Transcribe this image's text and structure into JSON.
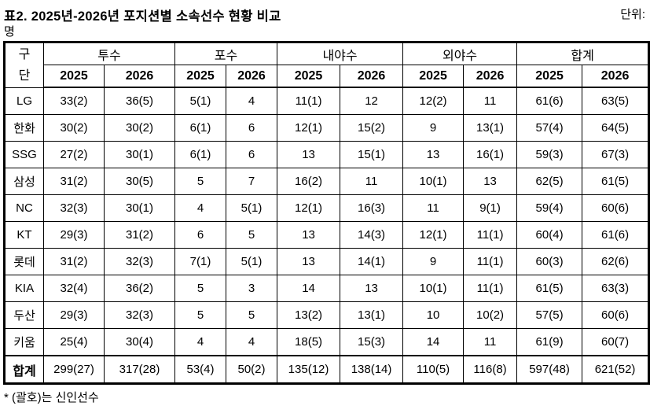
{
  "header": {
    "title": "표2. 2025년-2026년 포지션별 소속선수 현황 비교",
    "unit_label": "단위:",
    "unit_value": "명"
  },
  "table": {
    "team_col_line1": "구",
    "team_col_line2": "단",
    "groups": [
      "투수",
      "포수",
      "내야수",
      "외야수",
      "합계"
    ],
    "year_headers": [
      "2025",
      "2026"
    ],
    "rows": [
      {
        "team": "LG",
        "values": [
          "33(2)",
          "36(5)",
          "5(1)",
          "4",
          "11(1)",
          "12",
          "12(2)",
          "11",
          "61(6)",
          "63(5)"
        ]
      },
      {
        "team": "한화",
        "values": [
          "30(2)",
          "30(2)",
          "6(1)",
          "6",
          "12(1)",
          "15(2)",
          "9",
          "13(1)",
          "57(4)",
          "64(5)"
        ]
      },
      {
        "team": "SSG",
        "values": [
          "27(2)",
          "30(1)",
          "6(1)",
          "6",
          "13",
          "15(1)",
          "13",
          "16(1)",
          "59(3)",
          "67(3)"
        ]
      },
      {
        "team": "삼성",
        "values": [
          "31(2)",
          "30(5)",
          "5",
          "7",
          "16(2)",
          "11",
          "10(1)",
          "13",
          "62(5)",
          "61(5)"
        ]
      },
      {
        "team": "NC",
        "values": [
          "32(3)",
          "30(1)",
          "4",
          "5(1)",
          "12(1)",
          "16(3)",
          "11",
          "9(1)",
          "59(4)",
          "60(6)"
        ]
      },
      {
        "team": "KT",
        "values": [
          "29(3)",
          "31(2)",
          "6",
          "5",
          "13",
          "14(3)",
          "12(1)",
          "11(1)",
          "60(4)",
          "61(6)"
        ]
      },
      {
        "team": "롯데",
        "values": [
          "31(2)",
          "32(3)",
          "7(1)",
          "5(1)",
          "13",
          "14(1)",
          "9",
          "11(1)",
          "60(3)",
          "62(6)"
        ]
      },
      {
        "team": "KIA",
        "values": [
          "32(4)",
          "36(2)",
          "5",
          "3",
          "14",
          "13",
          "10(1)",
          "11(1)",
          "61(5)",
          "63(3)"
        ]
      },
      {
        "team": "두산",
        "values": [
          "29(3)",
          "32(3)",
          "5",
          "5",
          "13(2)",
          "13(1)",
          "10",
          "10(2)",
          "57(5)",
          "60(6)"
        ]
      },
      {
        "team": "키움",
        "values": [
          "25(4)",
          "30(4)",
          "4",
          "4",
          "18(5)",
          "15(3)",
          "14",
          "11",
          "61(9)",
          "60(7)"
        ]
      }
    ],
    "total_row": {
      "team": "합계",
      "values": [
        "299(27)",
        "317(28)",
        "53(4)",
        "50(2)",
        "135(12)",
        "138(14)",
        "110(5)",
        "116(8)",
        "597(48)",
        "621(52)"
      ]
    }
  },
  "footer": {
    "note": "* (괄호)는 신인선수"
  }
}
